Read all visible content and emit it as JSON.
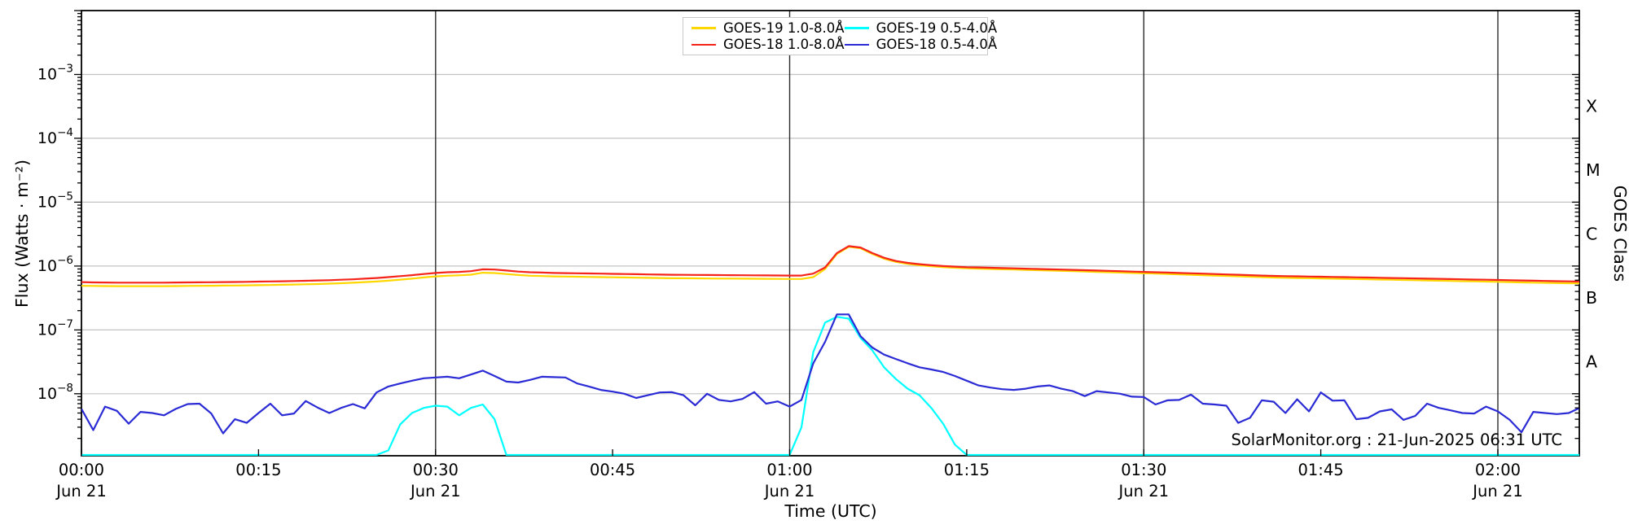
{
  "watermark": "SolarMonitor.org : 21-Jun-2025 06:31 UTC",
  "axes": {
    "xlabel": "Time (UTC)",
    "ylabel_left": "Flux (Watts · m⁻²)",
    "ylabel_right": "GOES Class",
    "x_ticks": [
      {
        "t": 0,
        "label": "00:00",
        "date": "Jun 21"
      },
      {
        "t": 15,
        "label": "00:15"
      },
      {
        "t": 30,
        "label": "00:30",
        "date": "Jun 21"
      },
      {
        "t": 45,
        "label": "00:45"
      },
      {
        "t": 60,
        "label": "01:00",
        "date": "Jun 21"
      },
      {
        "t": 75,
        "label": "01:15"
      },
      {
        "t": 90,
        "label": "01:30",
        "date": "Jun 21"
      },
      {
        "t": 105,
        "label": "01:45"
      },
      {
        "t": 120,
        "label": "02:00",
        "date": "Jun 21"
      }
    ],
    "y_tick_exponents": [
      -3,
      -4,
      -5,
      -6,
      -7,
      -8
    ],
    "class_labels": [
      {
        "label": "X",
        "log_center": -3.5
      },
      {
        "label": "M",
        "log_center": -4.5
      },
      {
        "label": "C",
        "log_center": -5.5
      },
      {
        "label": "B",
        "log_center": -6.5
      },
      {
        "label": "A",
        "log_center": -7.5
      }
    ]
  },
  "legend": {
    "entries": [
      {
        "label": "GOES-19 1.0-8.0Å",
        "color": "#FFD700"
      },
      {
        "label": "GOES-18 1.0-8.0Å",
        "color": "#F5241A"
      },
      {
        "label": "GOES-19 0.5-4.0Å",
        "color": "#00FFFF"
      },
      {
        "label": "GOES-18 0.5-4.0Å",
        "color": "#2B2BD5"
      }
    ]
  },
  "chart_data": {
    "type": "line",
    "title": "",
    "xlabel": "Time (UTC)",
    "ylabel": "Flux (Watts · m⁻²)",
    "x_unit": "minutes after 2025-06-21 00:00 UTC",
    "x_start_min": 0,
    "x_step_min": 1,
    "xlim_min": [
      0,
      126.9
    ],
    "ylim": [
      1.07e-09,
      0.01
    ],
    "yscale": "log",
    "grid": true,
    "grid_decades": [
      -3,
      -4,
      -5,
      -6,
      -7,
      -8
    ],
    "vlines_min": [
      30,
      60,
      90,
      120
    ],
    "legend_position": "top-center",
    "series": [
      {
        "name": "GOES-19 1.0-8.0Å",
        "color": "#FFD700",
        "values": [
          4.9e-07,
          4.88e-07,
          4.86e-07,
          4.84e-07,
          4.84e-07,
          4.84e-07,
          4.84e-07,
          4.84e-07,
          4.86e-07,
          4.88e-07,
          4.9e-07,
          4.92e-07,
          4.94e-07,
          4.96e-07,
          4.99e-07,
          5.02e-07,
          5.05e-07,
          5.09e-07,
          5.13e-07,
          5.18e-07,
          5.23e-07,
          5.3e-07,
          5.38e-07,
          5.47e-07,
          5.6e-07,
          5.73e-07,
          5.9e-07,
          6.12e-07,
          6.35e-07,
          6.62e-07,
          6.88e-07,
          7.06e-07,
          7.15e-07,
          7.32e-07,
          7.85e-07,
          7.77e-07,
          7.5e-07,
          7.24e-07,
          7.06e-07,
          6.97e-07,
          6.88e-07,
          6.84e-07,
          6.8e-07,
          6.75e-07,
          6.71e-07,
          6.66e-07,
          6.62e-07,
          6.58e-07,
          6.53e-07,
          6.49e-07,
          6.44e-07,
          6.43e-07,
          6.41e-07,
          6.39e-07,
          6.37e-07,
          6.36e-07,
          6.34e-07,
          6.32e-07,
          6.3e-07,
          6.29e-07,
          6.27e-07,
          6.27e-07,
          6.7e-07,
          9e-07,
          1.55e-06,
          2e-06,
          1.9e-06,
          1.55e-06,
          1.3e-06,
          1.16e-06,
          1.08e-06,
          1.03e-06,
          9.9e-07,
          9.6e-07,
          9.4e-07,
          9.2e-07,
          9.1e-07,
          9e-07,
          8.9e-07,
          8.8e-07,
          8.7e-07,
          8.6e-07,
          8.5e-07,
          8.4e-07,
          8.3e-07,
          8.2e-07,
          8.1e-07,
          8e-07,
          7.9e-07,
          7.8e-07,
          7.7e-07,
          7.6e-07,
          7.5e-07,
          7.4e-07,
          7.3e-07,
          7.2e-07,
          7.1e-07,
          7e-07,
          6.9e-07,
          6.8e-07,
          6.7e-07,
          6.6e-07,
          6.55e-07,
          6.5e-07,
          6.45e-07,
          6.4e-07,
          6.35e-07,
          6.3e-07,
          6.25e-07,
          6.2e-07,
          6.15e-07,
          6.1e-07,
          6.05e-07,
          6e-07,
          5.95e-07,
          5.9e-07,
          5.85e-07,
          5.8e-07,
          5.75e-07,
          5.7e-07,
          5.65e-07,
          5.6e-07,
          5.55e-07,
          5.5e-07,
          5.46e-07,
          5.42e-07,
          5.38e-07,
          5.35e-07
        ]
      },
      {
        "name": "GOES-18 1.0-8.0Å",
        "color": "#F5241A",
        "values": [
          5.6e-07,
          5.55e-07,
          5.52e-07,
          5.5e-07,
          5.5e-07,
          5.5e-07,
          5.5e-07,
          5.5e-07,
          5.52e-07,
          5.54e-07,
          5.56e-07,
          5.58e-07,
          5.6e-07,
          5.63e-07,
          5.66e-07,
          5.7e-07,
          5.74e-07,
          5.78e-07,
          5.83e-07,
          5.88e-07,
          5.94e-07,
          6e-07,
          6.1e-07,
          6.2e-07,
          6.35e-07,
          6.5e-07,
          6.7e-07,
          6.95e-07,
          7.2e-07,
          7.5e-07,
          7.8e-07,
          8e-07,
          8.1e-07,
          8.3e-07,
          8.9e-07,
          8.8e-07,
          8.5e-07,
          8.2e-07,
          8e-07,
          7.9e-07,
          7.8e-07,
          7.75e-07,
          7.7e-07,
          7.65e-07,
          7.6e-07,
          7.55e-07,
          7.5e-07,
          7.45e-07,
          7.4e-07,
          7.35e-07,
          7.3e-07,
          7.28e-07,
          7.26e-07,
          7.24e-07,
          7.22e-07,
          7.2e-07,
          7.18e-07,
          7.16e-07,
          7.14e-07,
          7.12e-07,
          7.1e-07,
          7.1e-07,
          7.6e-07,
          9.5e-07,
          1.6e-06,
          2.05e-06,
          1.95e-06,
          1.6e-06,
          1.35e-06,
          1.2e-06,
          1.12e-06,
          1.07e-06,
          1.03e-06,
          1e-06,
          9.8e-07,
          9.6e-07,
          9.5e-07,
          9.4e-07,
          9.3e-07,
          9.2e-07,
          9.1e-07,
          9e-07,
          8.9e-07,
          8.8e-07,
          8.7e-07,
          8.6e-07,
          8.5e-07,
          8.4e-07,
          8.3e-07,
          8.2e-07,
          8.1e-07,
          8e-07,
          7.9e-07,
          7.8e-07,
          7.7e-07,
          7.6e-07,
          7.5e-07,
          7.4e-07,
          7.3e-07,
          7.2e-07,
          7.1e-07,
          7e-07,
          6.95e-07,
          6.9e-07,
          6.85e-07,
          6.8e-07,
          6.75e-07,
          6.7e-07,
          6.65e-07,
          6.6e-07,
          6.55e-07,
          6.5e-07,
          6.45e-07,
          6.4e-07,
          6.35e-07,
          6.3e-07,
          6.25e-07,
          6.2e-07,
          6.15e-07,
          6.1e-07,
          6.05e-07,
          6e-07,
          5.95e-07,
          5.9e-07,
          5.85e-07,
          5.8e-07,
          5.75e-07,
          5.7e-07
        ]
      },
      {
        "name": "GOES-19 0.5-4.0Å",
        "color": "#00FFFF",
        "values": [
          1.05e-09,
          1.05e-09,
          1.05e-09,
          1.05e-09,
          1.05e-09,
          1.05e-09,
          1.05e-09,
          1.05e-09,
          1.05e-09,
          1.05e-09,
          1.05e-09,
          1.05e-09,
          1.05e-09,
          1.05e-09,
          1.05e-09,
          1.05e-09,
          1.05e-09,
          1.05e-09,
          1.05e-09,
          1.05e-09,
          1.05e-09,
          1.05e-09,
          1.05e-09,
          1.05e-09,
          1.05e-09,
          1.05e-09,
          1.3e-09,
          3.3e-09,
          5e-09,
          6e-09,
          6.5e-09,
          6.3e-09,
          4.6e-09,
          6e-09,
          6.8e-09,
          4e-09,
          1.1e-09,
          1.05e-09,
          1.05e-09,
          1.05e-09,
          1.05e-09,
          1.05e-09,
          1.05e-09,
          1.05e-09,
          1.05e-09,
          1.05e-09,
          1.05e-09,
          1.05e-09,
          1.05e-09,
          1.05e-09,
          1.05e-09,
          1.05e-09,
          1.05e-09,
          1.05e-09,
          1.05e-09,
          1.05e-09,
          1.05e-09,
          1.05e-09,
          1.05e-09,
          1.05e-09,
          1.05e-09,
          3e-09,
          4.5e-08,
          1.3e-07,
          1.6e-07,
          1.5e-07,
          7.5e-08,
          4.8e-08,
          2.6e-08,
          1.7e-08,
          1.2e-08,
          9.5e-09,
          6e-09,
          3.4e-09,
          1.6e-09,
          1.05e-09,
          1.05e-09,
          1.05e-09,
          1.05e-09,
          1.05e-09,
          1.05e-09,
          1.05e-09,
          1.05e-09,
          1.05e-09,
          1.05e-09,
          1.05e-09,
          1.05e-09,
          1.05e-09,
          1.05e-09,
          1.05e-09,
          1.05e-09,
          1.05e-09,
          1.05e-09,
          1.05e-09,
          1.05e-09,
          1.05e-09,
          1.05e-09,
          1.05e-09,
          1.05e-09,
          1.05e-09,
          1.05e-09,
          1.05e-09,
          1.05e-09,
          1.05e-09,
          1.05e-09,
          1.05e-09,
          1.05e-09,
          1.05e-09,
          1.05e-09,
          1.05e-09,
          1.05e-09,
          1.05e-09,
          1.05e-09,
          1.05e-09,
          1.05e-09,
          1.05e-09,
          1.05e-09,
          1.05e-09,
          1.05e-09,
          1.05e-09,
          1.05e-09,
          1.05e-09,
          1.05e-09,
          1.05e-09,
          1.05e-09,
          1.05e-09,
          1.05e-09,
          1.05e-09
        ]
      },
      {
        "name": "GOES-18 0.5-4.0Å",
        "color": "#2B2BD5",
        "values": [
          5.8e-09,
          2.7e-09,
          6.3e-09,
          5.4e-09,
          3.4e-09,
          5.2e-09,
          5e-09,
          4.6e-09,
          5.8e-09,
          6.9e-09,
          7e-09,
          4.9e-09,
          2.4e-09,
          4e-09,
          3.5e-09,
          5e-09,
          7e-09,
          4.6e-09,
          4.9e-09,
          7.7e-09,
          6.1e-09,
          5e-09,
          6e-09,
          6.9e-09,
          5.9e-09,
          1.05e-08,
          1.3e-08,
          1.45e-08,
          1.6e-08,
          1.75e-08,
          1.8e-08,
          1.85e-08,
          1.75e-08,
          2e-08,
          2.3e-08,
          1.9e-08,
          1.55e-08,
          1.5e-08,
          1.65e-08,
          1.85e-08,
          1.82e-08,
          1.8e-08,
          1.45e-08,
          1.3e-08,
          1.15e-08,
          1.08e-08,
          1e-08,
          8.6e-09,
          9.5e-09,
          1.05e-08,
          1.06e-08,
          9.5e-09,
          6.6e-09,
          1e-08,
          8e-09,
          7.6e-09,
          8.3e-09,
          1.06e-08,
          7e-09,
          7.6e-09,
          6.3e-09,
          8e-09,
          3e-08,
          6.5e-08,
          1.75e-07,
          1.75e-07,
          8e-08,
          5.3e-08,
          4.1e-08,
          3.5e-08,
          3e-08,
          2.6e-08,
          2.4e-08,
          2.2e-08,
          1.9e-08,
          1.6e-08,
          1.35e-08,
          1.25e-08,
          1.18e-08,
          1.15e-08,
          1.2e-08,
          1.3e-08,
          1.35e-08,
          1.2e-08,
          1.1e-08,
          9.2e-09,
          1.1e-08,
          1.05e-08,
          1e-08,
          9e-09,
          8.9e-09,
          6.8e-09,
          7.9e-09,
          8e-09,
          9.7e-09,
          7e-09,
          6.8e-09,
          6.5e-09,
          3.5e-09,
          4.2e-09,
          7.9e-09,
          7.5e-09,
          5e-09,
          8.2e-09,
          5.3e-09,
          1.05e-08,
          7.8e-09,
          7.9e-09,
          4e-09,
          4.2e-09,
          5.3e-09,
          5.7e-09,
          3.9e-09,
          4.5e-09,
          7e-09,
          6e-09,
          5.5e-09,
          5e-09,
          4.9e-09,
          6.3e-09,
          5.3e-09,
          3.9e-09,
          2.5e-09,
          5.2e-09,
          5e-09,
          4.8e-09,
          5e-09,
          6.1e-09
        ]
      }
    ]
  }
}
